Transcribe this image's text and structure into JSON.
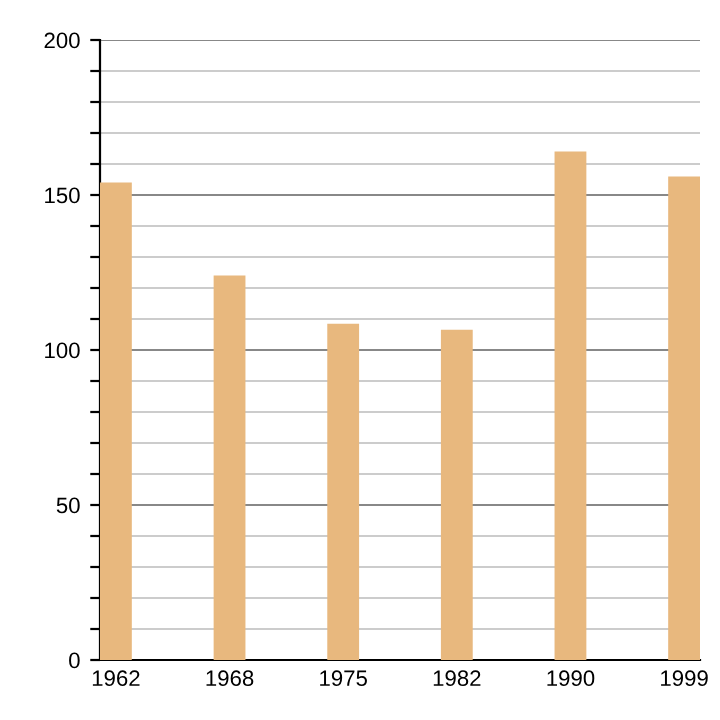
{
  "chart_data": {
    "type": "bar",
    "categories": [
      "1962",
      "1968",
      "1975",
      "1982",
      "1990",
      "1999"
    ],
    "values": [
      154,
      124,
      108.5,
      106.5,
      164,
      156
    ],
    "color": "#e8b87e",
    "ylim": [
      0,
      200
    ],
    "yticks": [
      0,
      {
        "value": 10,
        "label": null
      },
      {
        "value": 20,
        "label": null
      },
      {
        "value": 30,
        "label": null
      },
      {
        "value": 40,
        "label": null
      },
      50,
      {
        "value": 60,
        "label": null
      },
      {
        "value": 70,
        "label": null
      },
      {
        "value": 80,
        "label": null
      },
      {
        "value": 90,
        "label": null
      },
      100,
      {
        "value": 110,
        "label": null
      },
      {
        "value": 120,
        "label": null
      },
      {
        "value": 130,
        "label": null
      },
      {
        "value": 140,
        "label": null
      },
      150,
      {
        "value": 160,
        "label": null
      },
      {
        "value": 170,
        "label": null
      },
      {
        "value": 180,
        "label": null
      },
      {
        "value": 190,
        "label": null
      },
      200
    ],
    "grid": "y"
  }
}
